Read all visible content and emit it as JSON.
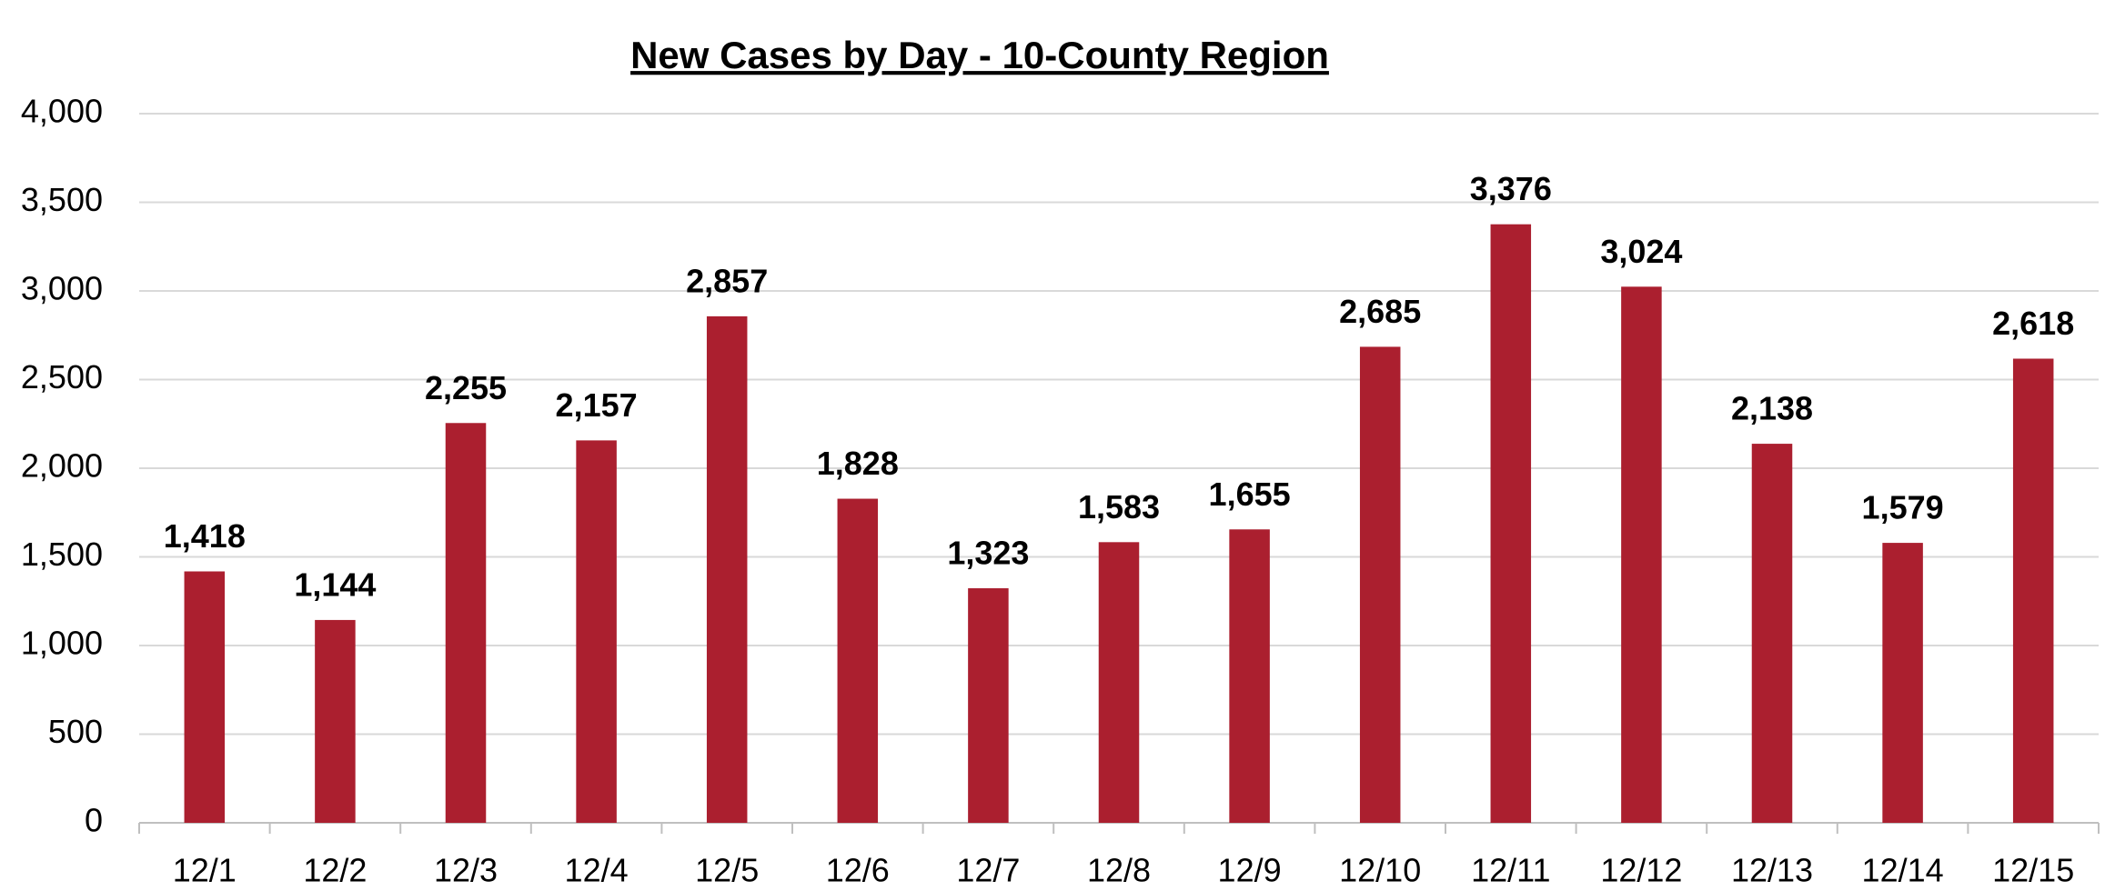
{
  "chart_data": {
    "type": "bar",
    "title": "New Cases by Day - 10-County Region",
    "categories": [
      "12/1",
      "12/2",
      "12/3",
      "12/4",
      "12/5",
      "12/6",
      "12/7",
      "12/8",
      "12/9",
      "12/10",
      "12/11",
      "12/12",
      "12/13",
      "12/14",
      "12/15"
    ],
    "values": [
      1418,
      1144,
      2255,
      2157,
      2857,
      1828,
      1323,
      1583,
      1655,
      2685,
      3376,
      3024,
      2138,
      1579,
      2618
    ],
    "value_labels": [
      "1,418",
      "1,144",
      "2,255",
      "2,157",
      "2,857",
      "1,828",
      "1,323",
      "1,583",
      "1,655",
      "2,685",
      "3,376",
      "3,024",
      "2,138",
      "1,579",
      "2,618"
    ],
    "color": "#ab1f2f",
    "ylim": [
      0,
      4000
    ],
    "yticks": [
      0,
      500,
      {
        "value": 1000,
        "label": "1,000"
      },
      {
        "value": 1500,
        "label": "1,500"
      },
      {
        "value": 2000,
        "label": "2,000"
      },
      {
        "value": 2500,
        "label": "2,500"
      },
      {
        "value": 3000,
        "label": "3,000"
      },
      {
        "value": 3500,
        "label": "3,500"
      },
      {
        "value": 4000,
        "label": "4,000"
      }
    ],
    "grid": true
  }
}
